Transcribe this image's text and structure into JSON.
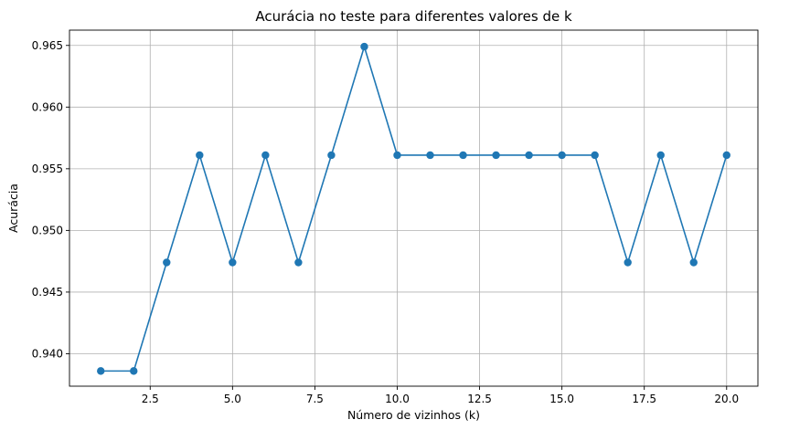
{
  "chart_data": {
    "type": "line",
    "title": "Acurácia no teste para diferentes valores de k",
    "xlabel": "Número de vizinhos (k)",
    "ylabel": "Acurácia",
    "x": [
      1,
      2,
      3,
      4,
      5,
      6,
      7,
      8,
      9,
      10,
      11,
      12,
      13,
      14,
      15,
      16,
      17,
      18,
      19,
      20
    ],
    "series": [
      {
        "values": [
          0.9386,
          0.9386,
          0.9474,
          0.9561,
          0.9474,
          0.9561,
          0.9474,
          0.9561,
          0.9649,
          0.9561,
          0.9561,
          0.9561,
          0.9561,
          0.9561,
          0.9561,
          0.9561,
          0.9474,
          0.9561,
          0.9474,
          0.9561
        ],
        "color": "#1f77b4",
        "marker": "circle"
      }
    ],
    "xlim": [
      0.05,
      20.95
    ],
    "ylim": [
      0.93737,
      0.96624
    ],
    "xticks": [
      2.5,
      5.0,
      7.5,
      10.0,
      12.5,
      15.0,
      17.5,
      20.0
    ],
    "xtick_labels": [
      "2.5",
      "5.0",
      "7.5",
      "10.0",
      "12.5",
      "15.0",
      "17.5",
      "20.0"
    ],
    "yticks": [
      0.94,
      0.945,
      0.95,
      0.955,
      0.96,
      0.965
    ],
    "ytick_labels": [
      "0.940",
      "0.945",
      "0.950",
      "0.955",
      "0.960",
      "0.965"
    ],
    "grid": true,
    "legend": "none"
  }
}
